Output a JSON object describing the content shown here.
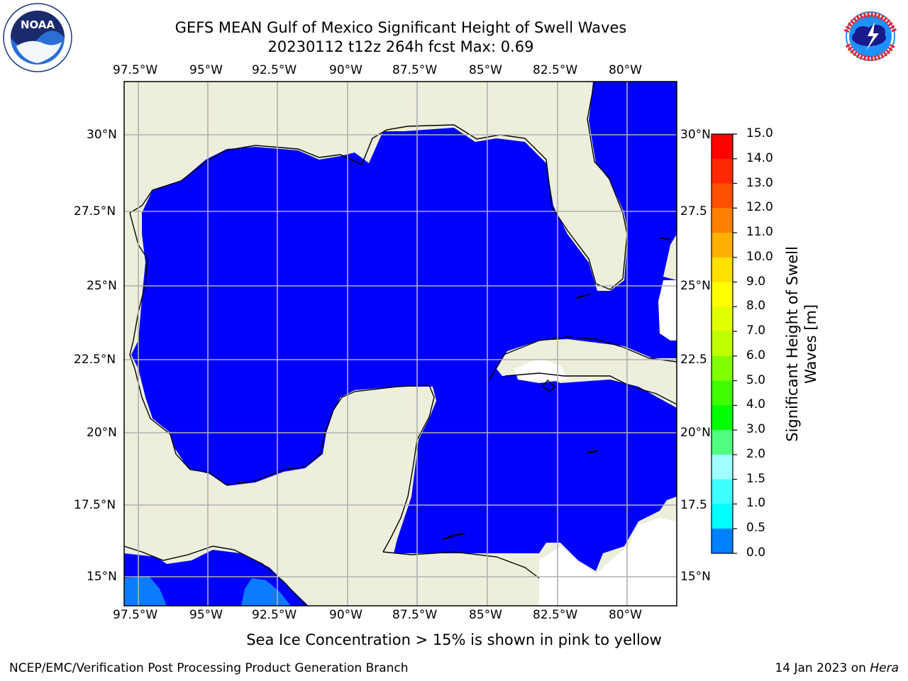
{
  "header": {
    "title_line1": "GEFS MEAN Gulf of Mexico Significant Height of Swell Waves",
    "title_line2": "20230112 t12z 264h fcst   Max: 0.69"
  },
  "logos": {
    "noaa_text": "NOAA",
    "noaa_ring_text": "NATIONAL OCEANIC AND ATMOSPHERIC ADMINISTRATION · U.S. DEPARTMENT OF COMMERCE",
    "nws_ring_text": "NATIONAL WEATHER SERVICE"
  },
  "map": {
    "lon_labels": [
      "97.5°W",
      "95°W",
      "92.5°W",
      "90°W",
      "87.5°W",
      "85°W",
      "82.5°W",
      "80°W"
    ],
    "lat_labels_left": [
      "30°N",
      "27.5°N",
      "25°N",
      "22.5°N",
      "20°N",
      "17.5°N",
      "15°N"
    ],
    "lat_labels_right": [
      "30°N",
      "27.5",
      "25°N",
      "22.5",
      "20°N",
      "17.5",
      "15°N"
    ],
    "colors": {
      "land": "#eeeedc",
      "ocean": "#0000ff",
      "swell_1": "#0a7cff",
      "grid": "#b0b0b0"
    }
  },
  "colorbar": {
    "ticks": [
      "15.0",
      "14.0",
      "13.0",
      "12.0",
      "11.0",
      "10.0",
      "9.0",
      "8.0",
      "7.0",
      "6.0",
      "5.0",
      "4.0",
      "3.0",
      "2.0",
      "1.5",
      "1.0",
      "0.5",
      "0.0"
    ],
    "colors_top_to_bottom": [
      "#ff0000",
      "#ff2800",
      "#ff5000",
      "#ff8000",
      "#ffb000",
      "#ffe000",
      "#ffff00",
      "#e0ff00",
      "#c0ff00",
      "#80ff00",
      "#40ff00",
      "#00ff00",
      "#50ff80",
      "#a0ffff",
      "#40ffff",
      "#00ffff",
      "#0080ff",
      "#0000ff"
    ],
    "title_line1": "Significant Height of Swell",
    "title_line2": "Waves [m]"
  },
  "footer": {
    "sea_ice_note": "Sea Ice Concentration > 15% is shown in pink to yellow",
    "org": "NCEP/EMC/Verification Post Processing Product Generation Branch",
    "date": "14 Jan 2023 on ",
    "host": "Hera"
  }
}
